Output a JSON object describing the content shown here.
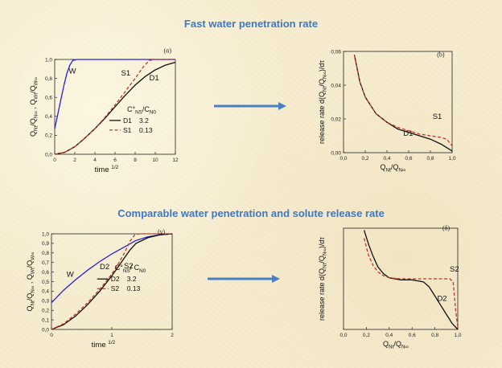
{
  "headings": {
    "top": "Fast water penetration rate",
    "bottom": "Comparable  water penetration  and solute release rate"
  },
  "colors": {
    "heading": "#3f78c4",
    "arrow": "#4a7fc0",
    "W": "#2323d6",
    "S": "#c0392b",
    "D": "#111111"
  },
  "chart_data": [
    {
      "type": "line",
      "panel": "(α)",
      "xlabel": "time 1/2",
      "ylabel": "Q_Nt/Q_N∞ , Q_Wt/Q_W∞",
      "xlim": [
        0,
        12
      ],
      "ylim": [
        0,
        1.0
      ],
      "xticks": [
        "0",
        "2",
        "4",
        "6",
        "8",
        "10",
        "12"
      ],
      "yticks": [
        "0,0",
        "0,2",
        "0,4",
        "0,6",
        "0,8",
        "1,0"
      ],
      "legend_title": "C°NS/CN0",
      "legend": [
        {
          "name": "D1",
          "value": "3.2"
        },
        {
          "name": "S1",
          "value": "0.13"
        }
      ],
      "series": [
        {
          "name": "W",
          "style": "solid-blue",
          "points": [
            [
              0,
              0.27
            ],
            [
              0.3,
              0.42
            ],
            [
              0.6,
              0.57
            ],
            [
              0.9,
              0.72
            ],
            [
              1.2,
              0.85
            ],
            [
              1.5,
              0.94
            ],
            [
              1.8,
              0.99
            ],
            [
              2.2,
              1.0
            ],
            [
              12,
              1.0
            ]
          ]
        },
        {
          "name": "D1",
          "style": "solid-black",
          "points": [
            [
              0,
              0
            ],
            [
              1,
              0.02
            ],
            [
              2,
              0.08
            ],
            [
              3,
              0.17
            ],
            [
              4,
              0.27
            ],
            [
              5,
              0.38
            ],
            [
              6,
              0.5
            ],
            [
              7,
              0.62
            ],
            [
              8,
              0.73
            ],
            [
              9,
              0.82
            ],
            [
              10,
              0.89
            ],
            [
              11,
              0.94
            ],
            [
              12,
              0.97
            ]
          ]
        },
        {
          "name": "S1",
          "style": "dashed-red",
          "points": [
            [
              0,
              0
            ],
            [
              1,
              0.02
            ],
            [
              2,
              0.08
            ],
            [
              3,
              0.17
            ],
            [
              4,
              0.27
            ],
            [
              5,
              0.39
            ],
            [
              6,
              0.52
            ],
            [
              7,
              0.66
            ],
            [
              8,
              0.8
            ],
            [
              8.8,
              0.92
            ],
            [
              9.4,
              0.99
            ],
            [
              10,
              1.0
            ],
            [
              12,
              1.0
            ]
          ]
        }
      ]
    },
    {
      "type": "line",
      "panel": "(b)",
      "xlabel": "Q_Nt/Q_N∞",
      "ylabel": "release rate d(Q_Nt/Q_N∞)/dτ",
      "xlim": [
        0,
        1.0
      ],
      "ylim": [
        0,
        0.06
      ],
      "xticks": [
        "0,0",
        "0,2",
        "0,4",
        "0,6",
        "0,8",
        "1,0"
      ],
      "yticks": [
        "0,00",
        "0,02",
        "0,04",
        "0,06"
      ],
      "series": [
        {
          "name": "D1",
          "style": "solid-black",
          "points": [
            [
              0.1,
              0.058
            ],
            [
              0.15,
              0.042
            ],
            [
              0.2,
              0.033
            ],
            [
              0.3,
              0.023
            ],
            [
              0.4,
              0.018
            ],
            [
              0.5,
              0.014
            ],
            [
              0.6,
              0.012
            ],
            [
              0.7,
              0.01
            ],
            [
              0.8,
              0.008
            ],
            [
              0.9,
              0.005
            ],
            [
              1.0,
              0.001
            ]
          ]
        },
        {
          "name": "S1",
          "style": "dashed-red",
          "points": [
            [
              0.1,
              0.058
            ],
            [
              0.15,
              0.042
            ],
            [
              0.2,
              0.033
            ],
            [
              0.3,
              0.023
            ],
            [
              0.4,
              0.018
            ],
            [
              0.5,
              0.015
            ],
            [
              0.6,
              0.013
            ],
            [
              0.7,
              0.011
            ],
            [
              0.8,
              0.01
            ],
            [
              0.9,
              0.009
            ],
            [
              0.95,
              0.008
            ],
            [
              1.0,
              0.004
            ]
          ]
        }
      ]
    },
    {
      "type": "line",
      "panel": "(γ)",
      "xlabel": "time 1/2",
      "ylabel": "Q_Nt/Q_N∞ , Q_Wt/Q_W∞",
      "xlim": [
        0,
        2
      ],
      "ylim": [
        0,
        1.0
      ],
      "xticks": [
        "0",
        "1",
        "2"
      ],
      "yticks": [
        "0,0",
        "0,1",
        "0,2",
        "0,3",
        "0,4",
        "0,5",
        "0,6",
        "0,7",
        "0,8",
        "0,9",
        "1,0"
      ],
      "legend_title": "C°NS/ CN0",
      "legend": [
        {
          "name": "D2",
          "value": "3.2"
        },
        {
          "name": "S2",
          "value": "0.13"
        }
      ],
      "series": [
        {
          "name": "W",
          "style": "solid-blue",
          "points": [
            [
              0,
              0.28
            ],
            [
              0.2,
              0.41
            ],
            [
              0.4,
              0.52
            ],
            [
              0.6,
              0.62
            ],
            [
              0.8,
              0.71
            ],
            [
              1.0,
              0.79
            ],
            [
              1.2,
              0.86
            ],
            [
              1.4,
              0.93
            ],
            [
              1.6,
              0.97
            ],
            [
              1.8,
              0.99
            ],
            [
              2,
              1.0
            ]
          ]
        },
        {
          "name": "D2",
          "style": "solid-black",
          "points": [
            [
              0,
              0
            ],
            [
              0.2,
              0.05
            ],
            [
              0.4,
              0.14
            ],
            [
              0.6,
              0.26
            ],
            [
              0.8,
              0.4
            ],
            [
              1.0,
              0.56
            ],
            [
              1.1,
              0.65
            ],
            [
              1.2,
              0.74
            ],
            [
              1.3,
              0.83
            ],
            [
              1.4,
              0.9
            ],
            [
              1.6,
              0.96
            ],
            [
              1.8,
              0.99
            ],
            [
              2,
              1.0
            ]
          ]
        },
        {
          "name": "S2",
          "style": "dashed-red",
          "points": [
            [
              0,
              0
            ],
            [
              0.2,
              0.06
            ],
            [
              0.4,
              0.16
            ],
            [
              0.6,
              0.28
            ],
            [
              0.8,
              0.42
            ],
            [
              1.0,
              0.58
            ],
            [
              1.1,
              0.68
            ],
            [
              1.2,
              0.79
            ],
            [
              1.3,
              0.92
            ],
            [
              1.38,
              0.99
            ],
            [
              1.45,
              1.0
            ],
            [
              2,
              1.0
            ]
          ]
        }
      ]
    },
    {
      "type": "line",
      "panel": "(δ)",
      "xlabel": "Q_Nt/Q_N∞",
      "ylabel": "release rate d(Q_Nt/Q_N∞)/dτ",
      "xlim": [
        0,
        1.0
      ],
      "ylim": [
        0,
        1.0
      ],
      "xticks": [
        "0,0",
        "0,2",
        "0,4",
        "0,6",
        "0,8",
        "1,0"
      ],
      "series": [
        {
          "name": "D2",
          "style": "solid-black",
          "points": [
            [
              0.18,
              0.98
            ],
            [
              0.22,
              0.84
            ],
            [
              0.26,
              0.72
            ],
            [
              0.3,
              0.62
            ],
            [
              0.35,
              0.55
            ],
            [
              0.4,
              0.51
            ],
            [
              0.5,
              0.49
            ],
            [
              0.6,
              0.49
            ],
            [
              0.7,
              0.47
            ],
            [
              0.75,
              0.42
            ],
            [
              0.8,
              0.33
            ],
            [
              0.85,
              0.24
            ],
            [
              0.9,
              0.15
            ],
            [
              0.95,
              0.06
            ],
            [
              1.0,
              0.0
            ]
          ]
        },
        {
          "name": "S2",
          "style": "dashed-red",
          "points": [
            [
              0.18,
              0.9
            ],
            [
              0.22,
              0.73
            ],
            [
              0.26,
              0.63
            ],
            [
              0.3,
              0.57
            ],
            [
              0.35,
              0.53
            ],
            [
              0.4,
              0.51
            ],
            [
              0.5,
              0.5
            ],
            [
              0.7,
              0.5
            ],
            [
              0.85,
              0.5
            ],
            [
              0.93,
              0.5
            ],
            [
              0.96,
              0.47
            ],
            [
              0.98,
              0.2
            ],
            [
              1.0,
              0.02
            ]
          ]
        }
      ]
    }
  ]
}
